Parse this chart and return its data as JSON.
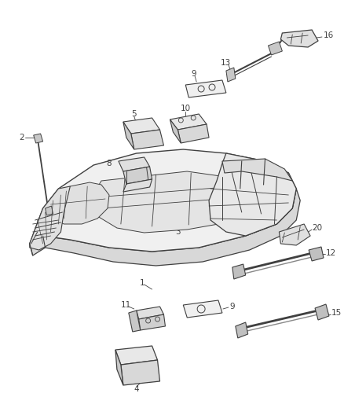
{
  "background_color": "#ffffff",
  "line_color": "#404040",
  "label_color": "#404040",
  "fig_width": 4.38,
  "fig_height": 5.33,
  "dpi": 100,
  "frame_color": "#505050",
  "part_color": "#686868",
  "fill_color": "#e8e8e8",
  "fill_light": "#f2f2f2"
}
